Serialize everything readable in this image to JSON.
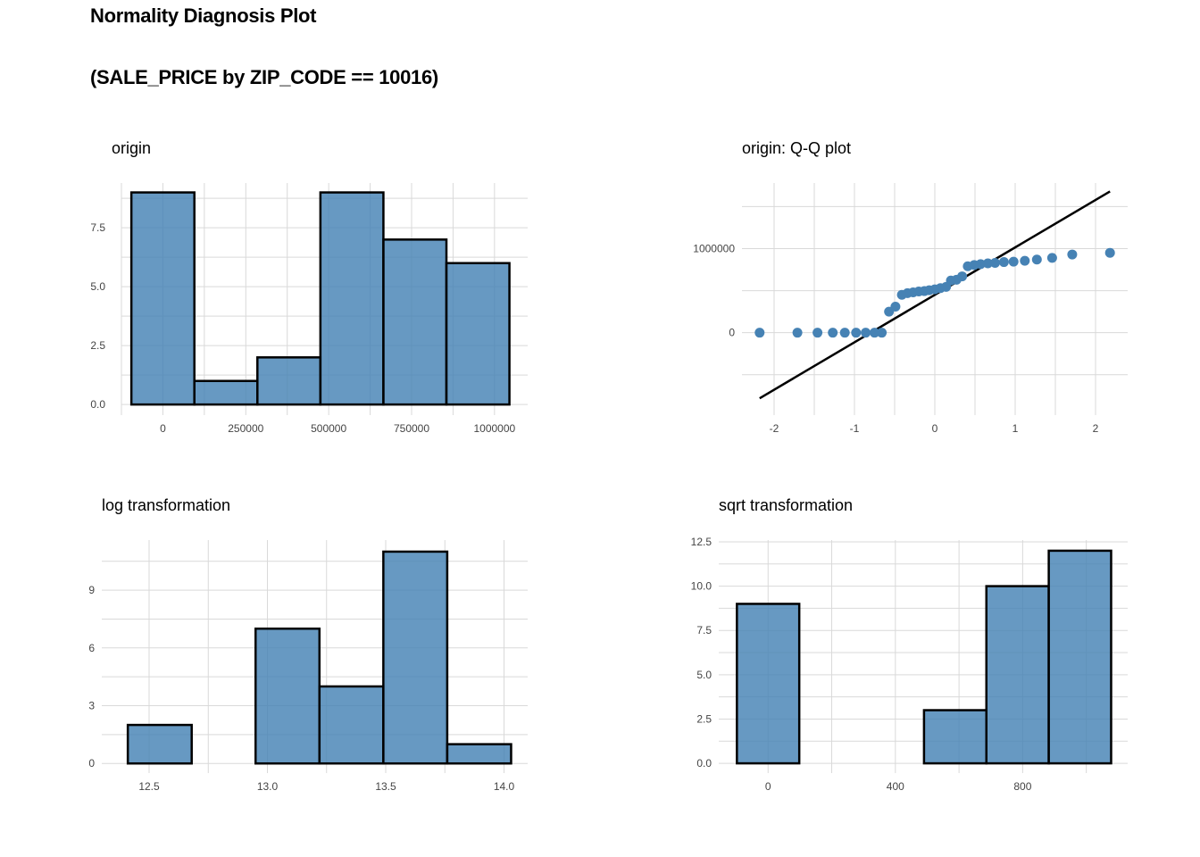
{
  "title": "Normality Diagnosis Plot",
  "subtitle": "(SALE_PRICE by ZIP_CODE == 10016)",
  "colors": {
    "fill": "#4682b4",
    "outline": "#000000",
    "grid": "#d9d9d9",
    "point": "#4682b4",
    "line": "#000000"
  },
  "chart_data": [
    {
      "type": "bar",
      "title": "origin",
      "bars": [
        {
          "x0": -95000,
          "x1": 95000,
          "count": 9
        },
        {
          "x0": 95000,
          "x1": 285000,
          "count": 1
        },
        {
          "x0": 285000,
          "x1": 475000,
          "count": 2
        },
        {
          "x0": 475000,
          "x1": 665000,
          "count": 9
        },
        {
          "x0": 665000,
          "x1": 855000,
          "count": 7
        },
        {
          "x0": 855000,
          "x1": 1045000,
          "count": 6
        }
      ],
      "xlim": [
        -125000,
        1100000
      ],
      "ylim": [
        -0.45,
        9.4
      ],
      "x_ticks": [
        0,
        250000,
        500000,
        750000,
        1000000
      ],
      "x_tick_labels": [
        "0",
        "250000",
        "500000",
        "750000",
        "1000000"
      ],
      "y_ticks": [
        0,
        2.5,
        5,
        7.5
      ],
      "y_tick_labels": [
        "0.0",
        "2.5",
        "5.0",
        "7.5"
      ],
      "grid": true
    },
    {
      "type": "scatter",
      "title": "origin: Q-Q plot",
      "points": [
        [
          -2.18,
          0
        ],
        [
          -1.71,
          0
        ],
        [
          -1.46,
          0
        ],
        [
          -1.27,
          0
        ],
        [
          -1.12,
          0
        ],
        [
          -0.98,
          0
        ],
        [
          -0.86,
          0
        ],
        [
          -0.75,
          0
        ],
        [
          -0.66,
          0
        ],
        [
          -0.57,
          250000
        ],
        [
          -0.49,
          310000
        ],
        [
          -0.41,
          450000
        ],
        [
          -0.34,
          470000
        ],
        [
          -0.27,
          480000
        ],
        [
          -0.2,
          490000
        ],
        [
          -0.13,
          495000
        ],
        [
          -0.07,
          505000
        ],
        [
          0,
          515000
        ],
        [
          0.07,
          530000
        ],
        [
          0.14,
          545000
        ],
        [
          0.2,
          620000
        ],
        [
          0.27,
          630000
        ],
        [
          0.34,
          670000
        ],
        [
          0.41,
          790000
        ],
        [
          0.49,
          805000
        ],
        [
          0.57,
          815000
        ],
        [
          0.66,
          825000
        ],
        [
          0.75,
          830000
        ],
        [
          0.86,
          840000
        ],
        [
          0.98,
          845000
        ],
        [
          1.12,
          855000
        ],
        [
          1.27,
          870000
        ],
        [
          1.46,
          890000
        ],
        [
          1.71,
          930000
        ],
        [
          2.18,
          950000
        ]
      ],
      "line": [
        [
          -2.18,
          -780000
        ],
        [
          2.18,
          1680000
        ]
      ],
      "xlim": [
        -2.4,
        2.4
      ],
      "ylim": [
        -980000,
        1780000
      ],
      "x_ticks": [
        -2,
        -1,
        0,
        1,
        2
      ],
      "x_tick_labels": [
        "-2",
        "-1",
        "0",
        "1",
        "2"
      ],
      "y_ticks": [
        0,
        1000000
      ],
      "y_tick_labels": [
        "0",
        "1000000"
      ],
      "grid": true
    },
    {
      "type": "bar",
      "title": "log transformation",
      "bars": [
        {
          "x0": 12.41,
          "x1": 12.68,
          "count": 2
        },
        {
          "x0": 12.68,
          "x1": 12.95,
          "count": 0
        },
        {
          "x0": 12.95,
          "x1": 13.22,
          "count": 7
        },
        {
          "x0": 13.22,
          "x1": 13.49,
          "count": 4
        },
        {
          "x0": 13.49,
          "x1": 13.76,
          "count": 11
        },
        {
          "x0": 13.76,
          "x1": 14.03,
          "count": 1
        }
      ],
      "xlim": [
        12.3,
        14.1
      ],
      "ylim": [
        -0.5,
        11.6
      ],
      "x_ticks": [
        12.5,
        13,
        13.5,
        14
      ],
      "x_tick_labels": [
        "12.5",
        "13.0",
        "13.5",
        "14.0"
      ],
      "y_ticks": [
        0,
        3,
        6,
        9
      ],
      "y_tick_labels": [
        "0",
        "3",
        "6",
        "9"
      ],
      "grid": true
    },
    {
      "type": "bar",
      "title": "sqrt transformation",
      "bars": [
        {
          "x0": -98,
          "x1": 98,
          "count": 9
        },
        {
          "x0": 98,
          "x1": 294,
          "count": 0
        },
        {
          "x0": 294,
          "x1": 490,
          "count": 0
        },
        {
          "x0": 490,
          "x1": 686,
          "count": 3
        },
        {
          "x0": 686,
          "x1": 882,
          "count": 10
        },
        {
          "x0": 882,
          "x1": 1078,
          "count": 12
        }
      ],
      "xlim": [
        -155,
        1130
      ],
      "ylim": [
        -0.55,
        12.6
      ],
      "x_ticks": [
        0,
        400,
        800
      ],
      "x_tick_labels": [
        "0",
        "400",
        "800"
      ],
      "y_ticks": [
        0,
        2.5,
        5,
        7.5,
        10,
        12.5
      ],
      "y_tick_labels": [
        "0.0",
        "2.5",
        "5.0",
        "7.5",
        "10.0",
        "12.5"
      ],
      "grid": true
    }
  ]
}
